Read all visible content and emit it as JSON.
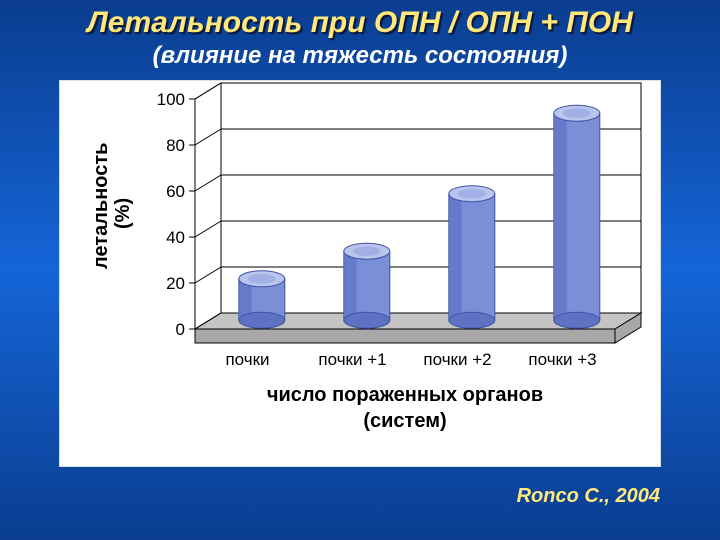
{
  "title": "Летальность при ОПН / ОПН + ПОН",
  "subtitle": "(влияние на тяжесть состояния)",
  "credit": "Ronco C., 2004",
  "chart": {
    "type": "3d-cylinder-bar",
    "ylabel_line1": "летальность",
    "ylabel_line2": "(%)",
    "xlabel_line1": "число пораженных органов",
    "xlabel_line2": "(систем)",
    "categories": [
      "почки",
      "почки +1",
      "почки +2",
      "почки +3"
    ],
    "values": [
      18,
      30,
      55,
      90
    ],
    "ylim": [
      0,
      100
    ],
    "ytick_step": 20,
    "bar_fill": "#7b8fd9",
    "bar_side": "#5d72c2",
    "bar_top_light": "#b9c5ee",
    "bar_top_dark": "#8a9cdc",
    "floor_fill": "#c4c4c4",
    "floor_side": "#a8a8a8",
    "wall_fill": "#ffffff",
    "grid_color": "#000000",
    "tick_color": "#000000",
    "tick_fontsize": 17,
    "cat_fontsize": 17,
    "label_fontsize": 20,
    "depth_dx": 26,
    "depth_dy": -16
  }
}
